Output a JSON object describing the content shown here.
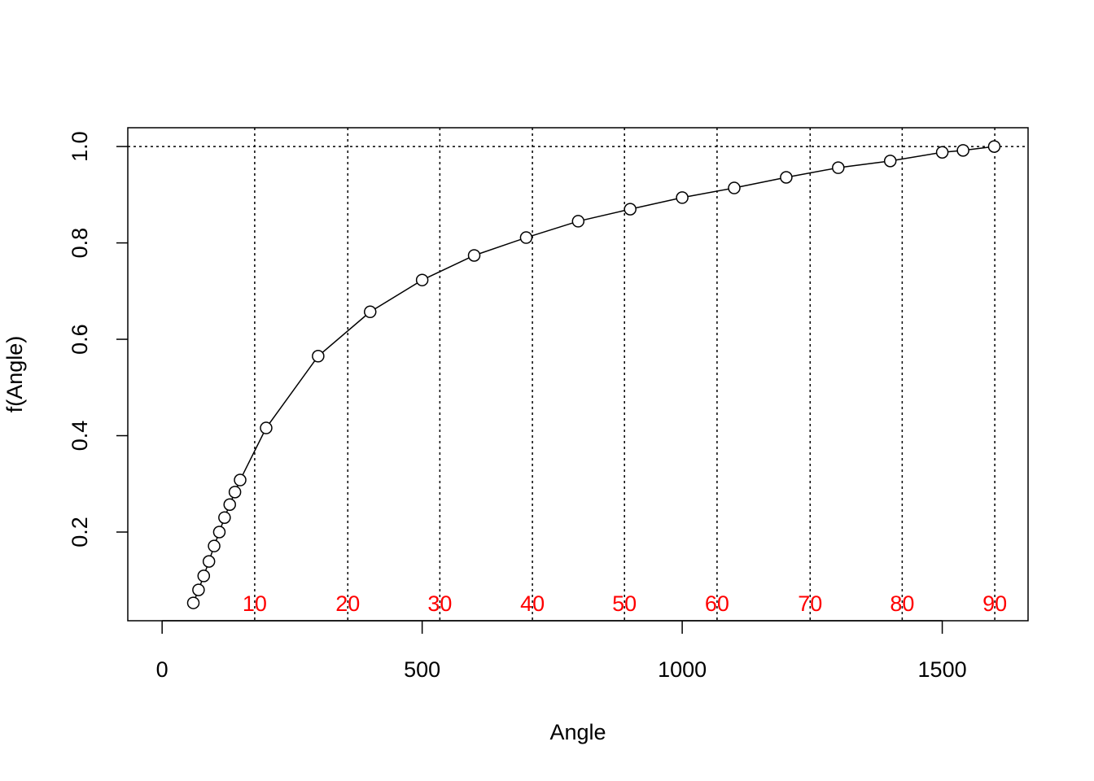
{
  "chart_data": {
    "type": "line",
    "x_label": "Angle",
    "y_label": "f(Angle)",
    "x": [
      60,
      70,
      80,
      90,
      100,
      110,
      120,
      130,
      140,
      150,
      200,
      300,
      400,
      500,
      600,
      700,
      800,
      900,
      1000,
      1100,
      1200,
      1300,
      1400,
      1500,
      1540,
      1600
    ],
    "series": [
      {
        "color": "#000000",
        "values": [
          0.053,
          0.08,
          0.109,
          0.139,
          0.171,
          0.2,
          0.23,
          0.257,
          0.283,
          0.308,
          0.416,
          0.565,
          0.657,
          0.723,
          0.774,
          0.811,
          0.845,
          0.87,
          0.894,
          0.914,
          0.936,
          0.956,
          0.97,
          0.988,
          0.992,
          1.0
        ]
      }
    ],
    "xlim": [
      -66,
      1665
    ],
    "ylim": [
      0.016,
      1.039
    ],
    "xticks": [
      0,
      500,
      1000,
      1500
    ],
    "yticks": [
      0.2,
      0.4,
      0.6,
      0.8,
      {
        "value": 1,
        "label": "1.0"
      }
    ],
    "hline": 1,
    "reference_lines": {
      "color": "#ff0000",
      "x": [
        178,
        357,
        534,
        712,
        889,
        1067,
        1246,
        1423,
        1601
      ],
      "labels": [
        "10",
        "20",
        "30",
        "40",
        "50",
        "60",
        "70",
        "80",
        "90"
      ]
    }
  }
}
